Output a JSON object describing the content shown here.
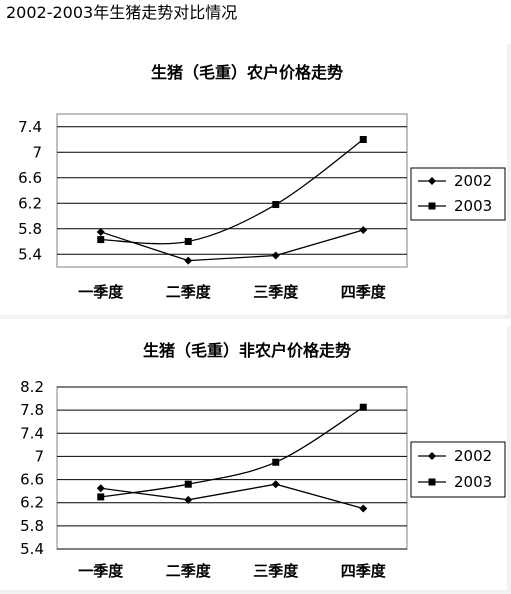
{
  "page_title": "2002-2003年生猪走势对比情况",
  "chart_data": [
    {
      "type": "line",
      "title": "生猪（毛重）农户价格走势",
      "categories": [
        "一季度",
        "二季度",
        "三季度",
        "四季度"
      ],
      "y_ticks": [
        "5.4",
        "5.8",
        "6.2",
        "6.6",
        "7",
        "7.4"
      ],
      "ylim": [
        5.2,
        7.6
      ],
      "grid": true,
      "legend_position": "right",
      "series": [
        {
          "name": "2002",
          "marker": "diamond",
          "values": [
            5.75,
            5.3,
            5.38,
            5.78
          ]
        },
        {
          "name": "2003",
          "marker": "square",
          "values": [
            5.63,
            5.6,
            6.18,
            7.2
          ]
        }
      ]
    },
    {
      "type": "line",
      "title": "生猪（毛重）非农户价格走势",
      "categories": [
        "一季度",
        "二季度",
        "三季度",
        "四季度"
      ],
      "y_ticks": [
        "5.4",
        "5.8",
        "6.2",
        "6.6",
        "7",
        "7.4",
        "7.8",
        "8.2"
      ],
      "ylim": [
        5.4,
        8.2
      ],
      "grid": true,
      "legend_position": "right",
      "series": [
        {
          "name": "2002",
          "marker": "diamond",
          "values": [
            6.45,
            6.25,
            6.52,
            6.1
          ]
        },
        {
          "name": "2003",
          "marker": "square",
          "values": [
            6.3,
            6.52,
            6.9,
            7.85
          ]
        }
      ]
    }
  ]
}
